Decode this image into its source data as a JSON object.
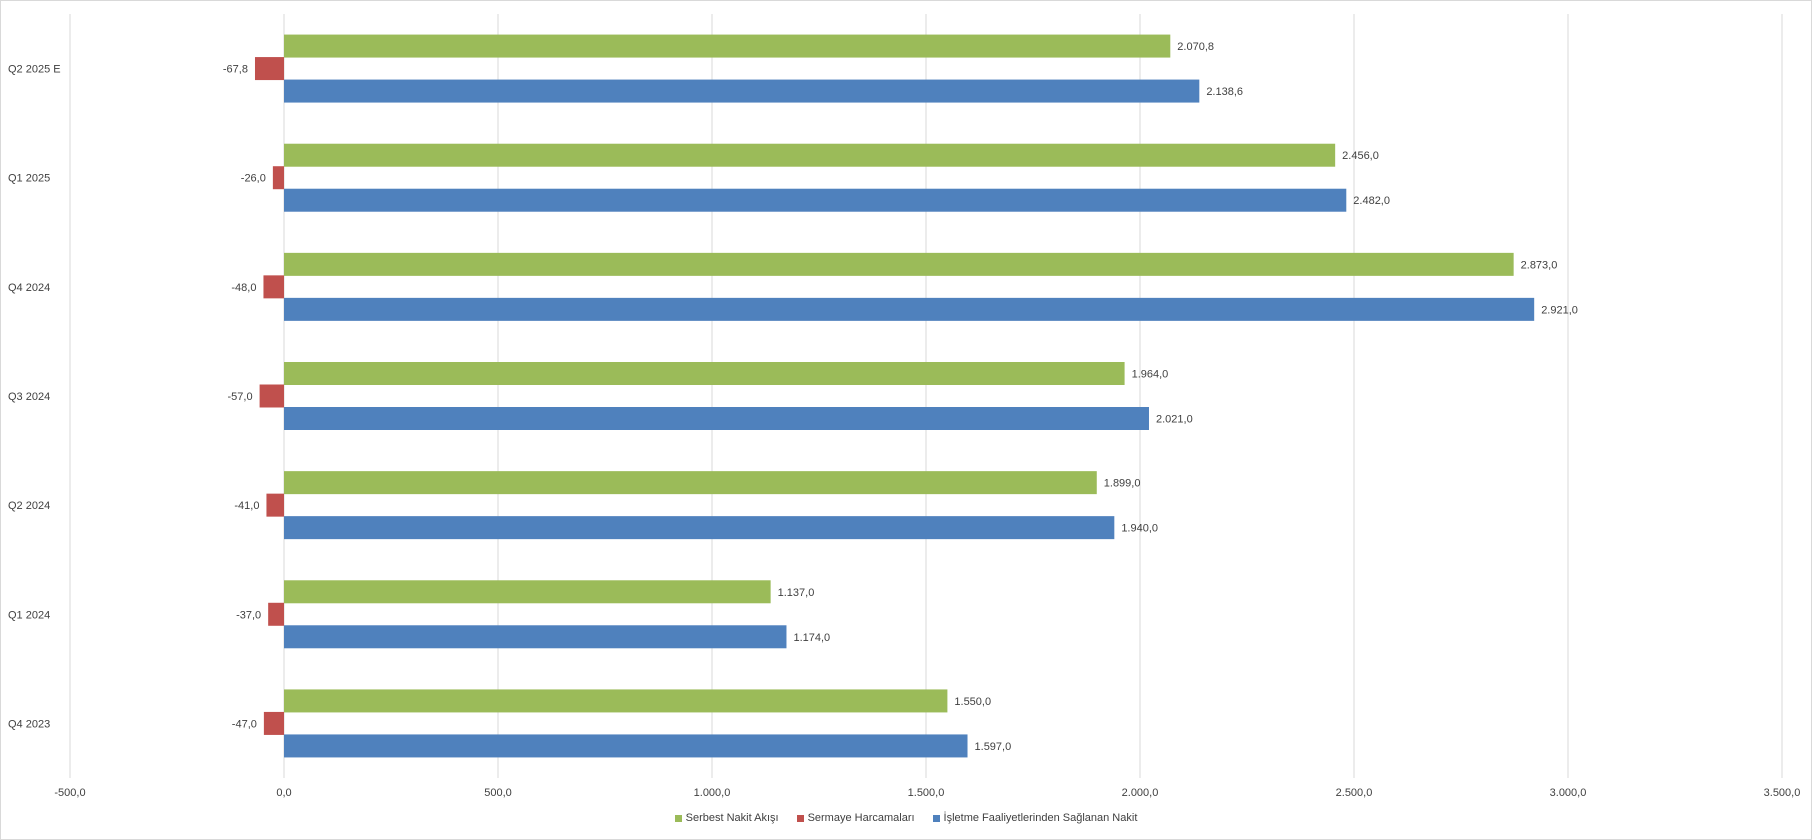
{
  "chart_data": {
    "type": "bar",
    "orientation": "horizontal",
    "categories": [
      "Q2 2025 E",
      "Q1 2025",
      "Q4 2024",
      "Q3 2024",
      "Q2 2024",
      "Q1 2024",
      "Q4 2023"
    ],
    "series": [
      {
        "name": "Serbest Nakit Akışı",
        "color": "#9bbb59",
        "values": [
          2070.8,
          2456.0,
          2873.0,
          1964.0,
          1899.0,
          1137.0,
          1550.0
        ]
      },
      {
        "name": "Sermaye Harcamaları",
        "color": "#c0504d",
        "values": [
          -67.8,
          -26.0,
          -48.0,
          -57.0,
          -41.0,
          -37.0,
          -47.0
        ]
      },
      {
        "name": "İşletme Faaliyetlerinden Sağlanan Nakit",
        "color": "#4f81bd",
        "values": [
          2138.6,
          2482.0,
          2921.0,
          2021.0,
          1940.0,
          1174.0,
          1597.0
        ]
      }
    ],
    "data_labels": [
      [
        "2.070,8",
        "2.456,0",
        "2.873,0",
        "1.964,0",
        "1.899,0",
        "1.137,0",
        "1.550,0"
      ],
      [
        "-67,8",
        "-26,0",
        "-48,0",
        "-57,0",
        "-41,0",
        "-37,0",
        "-47,0"
      ],
      [
        "2.138,6",
        "2.482,0",
        "2.921,0",
        "2.021,0",
        "1.940,0",
        "1.174,0",
        "1.597,0"
      ]
    ],
    "xlim": [
      -500,
      3500
    ],
    "x_ticks": [
      -500,
      0,
      500,
      1000,
      1500,
      2000,
      2500,
      3000,
      3500
    ],
    "x_tick_labels": [
      "-500,0",
      "0,0",
      "500,0",
      "1.000,0",
      "1.500,0",
      "2.000,0",
      "2.500,0",
      "3.000,0",
      "3.500,0"
    ],
    "title": "",
    "xlabel": "",
    "ylabel": "",
    "grid": true,
    "legend_position": "bottom"
  }
}
